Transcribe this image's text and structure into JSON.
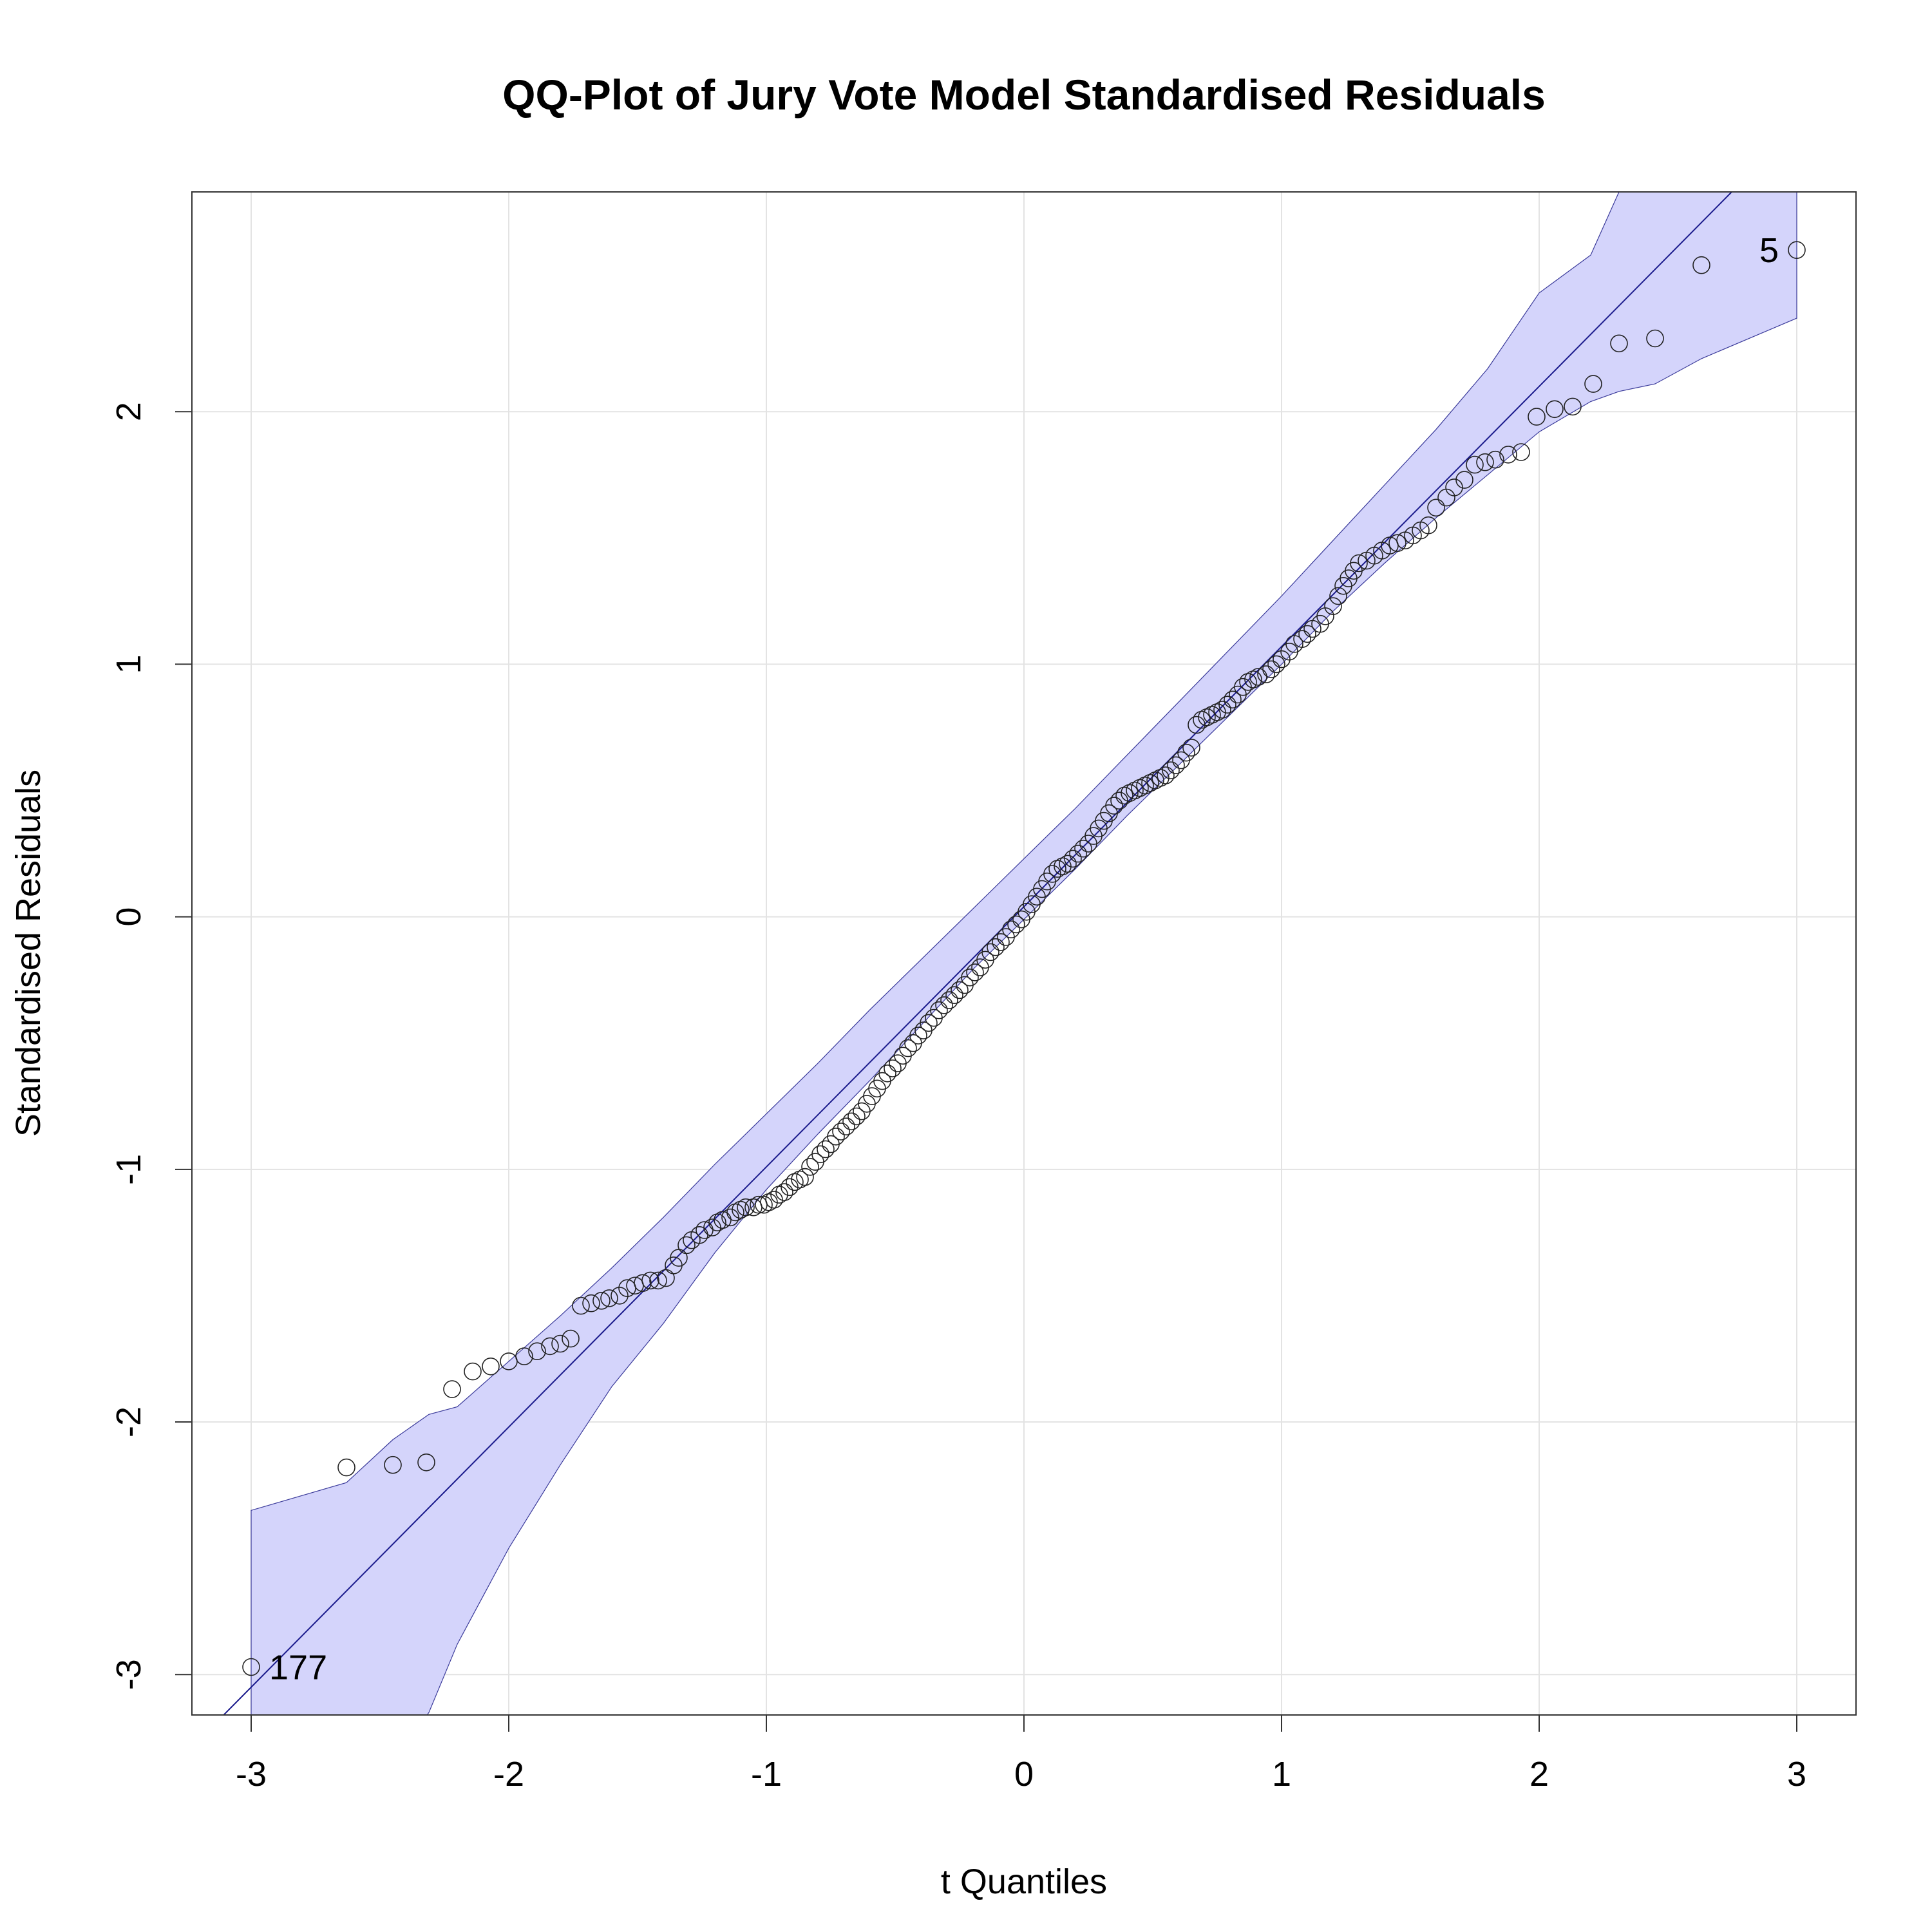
{
  "chart_data": {
    "type": "scatter",
    "title": "QQ-Plot of Jury Vote Model Standardised Residuals",
    "xlabel": "t Quantiles",
    "ylabel": "Standardised Residuals",
    "xlim": [
      -3.23,
      3.23
    ],
    "ylim": [
      -3.16,
      2.87
    ],
    "xticks": [
      -3,
      -2,
      -1,
      0,
      1,
      2,
      3
    ],
    "yticks": [
      -3,
      -2,
      -1,
      0,
      1,
      2
    ],
    "grid": true,
    "reference_line": {
      "intercept": 0.04,
      "slope": 1.03
    },
    "confidence_band": {
      "x": [
        -3.0,
        -2.63,
        -2.45,
        -2.31,
        -2.2,
        -2.0,
        -1.8,
        -1.6,
        -1.4,
        -1.2,
        -1.0,
        -0.8,
        -0.6,
        -0.4,
        -0.2,
        0.0,
        0.2,
        0.4,
        0.6,
        0.8,
        1.0,
        1.2,
        1.4,
        1.6,
        1.8,
        2.0,
        2.2,
        2.31,
        2.45,
        2.63,
        3.0
      ],
      "upper": [
        -2.35,
        -2.24,
        -2.07,
        -1.97,
        -1.94,
        -1.76,
        -1.58,
        -1.39,
        -1.19,
        -0.98,
        -0.78,
        -0.58,
        -0.37,
        -0.17,
        0.03,
        0.23,
        0.43,
        0.64,
        0.85,
        1.06,
        1.27,
        1.49,
        1.71,
        1.93,
        2.17,
        2.47,
        2.62,
        2.87,
        3.15,
        3.4,
        3.8
      ],
      "lower": [
        -4.2,
        -3.75,
        -3.35,
        -3.15,
        -2.88,
        -2.5,
        -2.17,
        -1.86,
        -1.61,
        -1.33,
        -1.08,
        -0.86,
        -0.65,
        -0.43,
        -0.21,
        -0.01,
        0.19,
        0.4,
        0.6,
        0.8,
        1.0,
        1.21,
        1.4,
        1.58,
        1.75,
        1.92,
        2.04,
        2.08,
        2.11,
        2.21,
        2.37
      ]
    },
    "points": [
      {
        "x": -3.0,
        "y": -2.97
      },
      {
        "x": -2.63,
        "y": -2.18
      },
      {
        "x": -2.45,
        "y": -2.17
      },
      {
        "x": -2.32,
        "y": -2.16
      },
      {
        "x": -2.22,
        "y": -1.87
      },
      {
        "x": -2.14,
        "y": -1.8
      },
      {
        "x": -2.07,
        "y": -1.78
      },
      {
        "x": -2.0,
        "y": -1.76
      },
      {
        "x": -1.94,
        "y": -1.74
      },
      {
        "x": -1.89,
        "y": -1.72
      },
      {
        "x": -1.84,
        "y": -1.7
      },
      {
        "x": -1.8,
        "y": -1.69
      },
      {
        "x": -1.76,
        "y": -1.67
      },
      {
        "x": -1.72,
        "y": -1.54
      },
      {
        "x": -1.68,
        "y": -1.53
      },
      {
        "x": -1.64,
        "y": -1.52
      },
      {
        "x": -1.61,
        "y": -1.51
      },
      {
        "x": -1.57,
        "y": -1.5
      },
      {
        "x": -1.54,
        "y": -1.47
      },
      {
        "x": -1.51,
        "y": -1.46
      },
      {
        "x": -1.48,
        "y": -1.45
      },
      {
        "x": -1.45,
        "y": -1.44
      },
      {
        "x": -1.42,
        "y": -1.44
      },
      {
        "x": -1.39,
        "y": -1.43
      },
      {
        "x": -1.36,
        "y": -1.38
      },
      {
        "x": -1.34,
        "y": -1.35
      },
      {
        "x": -1.31,
        "y": -1.3
      },
      {
        "x": -1.29,
        "y": -1.28
      },
      {
        "x": -1.26,
        "y": -1.26
      },
      {
        "x": -1.24,
        "y": -1.24
      },
      {
        "x": -1.21,
        "y": -1.23
      },
      {
        "x": -1.19,
        "y": -1.21
      },
      {
        "x": -1.17,
        "y": -1.2
      },
      {
        "x": -1.14,
        "y": -1.19
      },
      {
        "x": -1.12,
        "y": -1.17
      },
      {
        "x": -1.1,
        "y": -1.16
      },
      {
        "x": -1.08,
        "y": -1.15
      },
      {
        "x": -1.05,
        "y": -1.15
      },
      {
        "x": -1.03,
        "y": -1.14
      },
      {
        "x": -1.01,
        "y": -1.14
      },
      {
        "x": -0.99,
        "y": -1.13
      },
      {
        "x": -0.97,
        "y": -1.12
      },
      {
        "x": -0.95,
        "y": -1.1
      },
      {
        "x": -0.93,
        "y": -1.09
      },
      {
        "x": -0.91,
        "y": -1.07
      },
      {
        "x": -0.89,
        "y": -1.05
      },
      {
        "x": -0.87,
        "y": -1.04
      },
      {
        "x": -0.85,
        "y": -1.03
      },
      {
        "x": -0.83,
        "y": -0.99
      },
      {
        "x": -0.81,
        "y": -0.97
      },
      {
        "x": -0.79,
        "y": -0.94
      },
      {
        "x": -0.77,
        "y": -0.92
      },
      {
        "x": -0.75,
        "y": -0.9
      },
      {
        "x": -0.73,
        "y": -0.87
      },
      {
        "x": -0.71,
        "y": -0.85
      },
      {
        "x": -0.69,
        "y": -0.83
      },
      {
        "x": -0.67,
        "y": -0.81
      },
      {
        "x": -0.65,
        "y": -0.79
      },
      {
        "x": -0.63,
        "y": -0.77
      },
      {
        "x": -0.61,
        "y": -0.74
      },
      {
        "x": -0.59,
        "y": -0.71
      },
      {
        "x": -0.57,
        "y": -0.68
      },
      {
        "x": -0.55,
        "y": -0.65
      },
      {
        "x": -0.53,
        "y": -0.62
      },
      {
        "x": -0.51,
        "y": -0.6
      },
      {
        "x": -0.49,
        "y": -0.58
      },
      {
        "x": -0.47,
        "y": -0.55
      },
      {
        "x": -0.45,
        "y": -0.52
      },
      {
        "x": -0.43,
        "y": -0.5
      },
      {
        "x": -0.41,
        "y": -0.47
      },
      {
        "x": -0.39,
        "y": -0.45
      },
      {
        "x": -0.37,
        "y": -0.42
      },
      {
        "x": -0.35,
        "y": -0.4
      },
      {
        "x": -0.33,
        "y": -0.37
      },
      {
        "x": -0.31,
        "y": -0.35
      },
      {
        "x": -0.29,
        "y": -0.33
      },
      {
        "x": -0.27,
        "y": -0.31
      },
      {
        "x": -0.25,
        "y": -0.29
      },
      {
        "x": -0.23,
        "y": -0.27
      },
      {
        "x": -0.21,
        "y": -0.24
      },
      {
        "x": -0.19,
        "y": -0.22
      },
      {
        "x": -0.17,
        "y": -0.2
      },
      {
        "x": -0.15,
        "y": -0.17
      },
      {
        "x": -0.13,
        "y": -0.14
      },
      {
        "x": -0.11,
        "y": -0.12
      },
      {
        "x": -0.09,
        "y": -0.1
      },
      {
        "x": -0.07,
        "y": -0.08
      },
      {
        "x": -0.05,
        "y": -0.05
      },
      {
        "x": -0.03,
        "y": -0.03
      },
      {
        "x": -0.01,
        "y": -0.01
      },
      {
        "x": 0.01,
        "y": 0.02
      },
      {
        "x": 0.03,
        "y": 0.05
      },
      {
        "x": 0.05,
        "y": 0.08
      },
      {
        "x": 0.07,
        "y": 0.11
      },
      {
        "x": 0.09,
        "y": 0.14
      },
      {
        "x": 0.11,
        "y": 0.17
      },
      {
        "x": 0.13,
        "y": 0.19
      },
      {
        "x": 0.15,
        "y": 0.2
      },
      {
        "x": 0.17,
        "y": 0.21
      },
      {
        "x": 0.19,
        "y": 0.23
      },
      {
        "x": 0.21,
        "y": 0.25
      },
      {
        "x": 0.23,
        "y": 0.27
      },
      {
        "x": 0.25,
        "y": 0.29
      },
      {
        "x": 0.27,
        "y": 0.32
      },
      {
        "x": 0.29,
        "y": 0.35
      },
      {
        "x": 0.31,
        "y": 0.38
      },
      {
        "x": 0.33,
        "y": 0.41
      },
      {
        "x": 0.35,
        "y": 0.44
      },
      {
        "x": 0.37,
        "y": 0.46
      },
      {
        "x": 0.39,
        "y": 0.48
      },
      {
        "x": 0.41,
        "y": 0.49
      },
      {
        "x": 0.43,
        "y": 0.5
      },
      {
        "x": 0.45,
        "y": 0.51
      },
      {
        "x": 0.47,
        "y": 0.52
      },
      {
        "x": 0.49,
        "y": 0.53
      },
      {
        "x": 0.51,
        "y": 0.54
      },
      {
        "x": 0.53,
        "y": 0.55
      },
      {
        "x": 0.55,
        "y": 0.56
      },
      {
        "x": 0.57,
        "y": 0.58
      },
      {
        "x": 0.59,
        "y": 0.6
      },
      {
        "x": 0.61,
        "y": 0.62
      },
      {
        "x": 0.63,
        "y": 0.65
      },
      {
        "x": 0.65,
        "y": 0.67
      },
      {
        "x": 0.67,
        "y": 0.76
      },
      {
        "x": 0.69,
        "y": 0.78
      },
      {
        "x": 0.71,
        "y": 0.79
      },
      {
        "x": 0.73,
        "y": 0.8
      },
      {
        "x": 0.75,
        "y": 0.81
      },
      {
        "x": 0.77,
        "y": 0.82
      },
      {
        "x": 0.79,
        "y": 0.84
      },
      {
        "x": 0.81,
        "y": 0.86
      },
      {
        "x": 0.83,
        "y": 0.88
      },
      {
        "x": 0.85,
        "y": 0.91
      },
      {
        "x": 0.87,
        "y": 0.93
      },
      {
        "x": 0.89,
        "y": 0.94
      },
      {
        "x": 0.91,
        "y": 0.95
      },
      {
        "x": 0.94,
        "y": 0.96
      },
      {
        "x": 0.96,
        "y": 0.98
      },
      {
        "x": 0.98,
        "y": 1.0
      },
      {
        "x": 1.0,
        "y": 1.02
      },
      {
        "x": 1.03,
        "y": 1.05
      },
      {
        "x": 1.05,
        "y": 1.08
      },
      {
        "x": 1.08,
        "y": 1.1
      },
      {
        "x": 1.1,
        "y": 1.12
      },
      {
        "x": 1.12,
        "y": 1.14
      },
      {
        "x": 1.15,
        "y": 1.16
      },
      {
        "x": 1.17,
        "y": 1.19
      },
      {
        "x": 1.2,
        "y": 1.23
      },
      {
        "x": 1.22,
        "y": 1.27
      },
      {
        "x": 1.24,
        "y": 1.31
      },
      {
        "x": 1.26,
        "y": 1.34
      },
      {
        "x": 1.28,
        "y": 1.37
      },
      {
        "x": 1.3,
        "y": 1.4
      },
      {
        "x": 1.33,
        "y": 1.41
      },
      {
        "x": 1.36,
        "y": 1.43
      },
      {
        "x": 1.39,
        "y": 1.45
      },
      {
        "x": 1.42,
        "y": 1.47
      },
      {
        "x": 1.45,
        "y": 1.48
      },
      {
        "x": 1.48,
        "y": 1.49
      },
      {
        "x": 1.51,
        "y": 1.51
      },
      {
        "x": 1.54,
        "y": 1.53
      },
      {
        "x": 1.57,
        "y": 1.55
      },
      {
        "x": 1.6,
        "y": 1.62
      },
      {
        "x": 1.64,
        "y": 1.66
      },
      {
        "x": 1.67,
        "y": 1.7
      },
      {
        "x": 1.71,
        "y": 1.73
      },
      {
        "x": 1.75,
        "y": 1.79
      },
      {
        "x": 1.79,
        "y": 1.8
      },
      {
        "x": 1.83,
        "y": 1.81
      },
      {
        "x": 1.88,
        "y": 1.83
      },
      {
        "x": 1.93,
        "y": 1.84
      },
      {
        "x": 1.99,
        "y": 1.98
      },
      {
        "x": 2.06,
        "y": 2.01
      },
      {
        "x": 2.13,
        "y": 2.02
      },
      {
        "x": 2.21,
        "y": 2.11
      },
      {
        "x": 2.31,
        "y": 2.27
      },
      {
        "x": 2.45,
        "y": 2.29
      },
      {
        "x": 2.63,
        "y": 2.58
      },
      {
        "x": 3.0,
        "y": 2.64
      }
    ],
    "annotations": [
      {
        "text": "177",
        "x": -2.93,
        "y": -2.97,
        "anchor": "start"
      },
      {
        "text": "5",
        "x": 2.93,
        "y": 2.64,
        "anchor": "end"
      }
    ]
  }
}
